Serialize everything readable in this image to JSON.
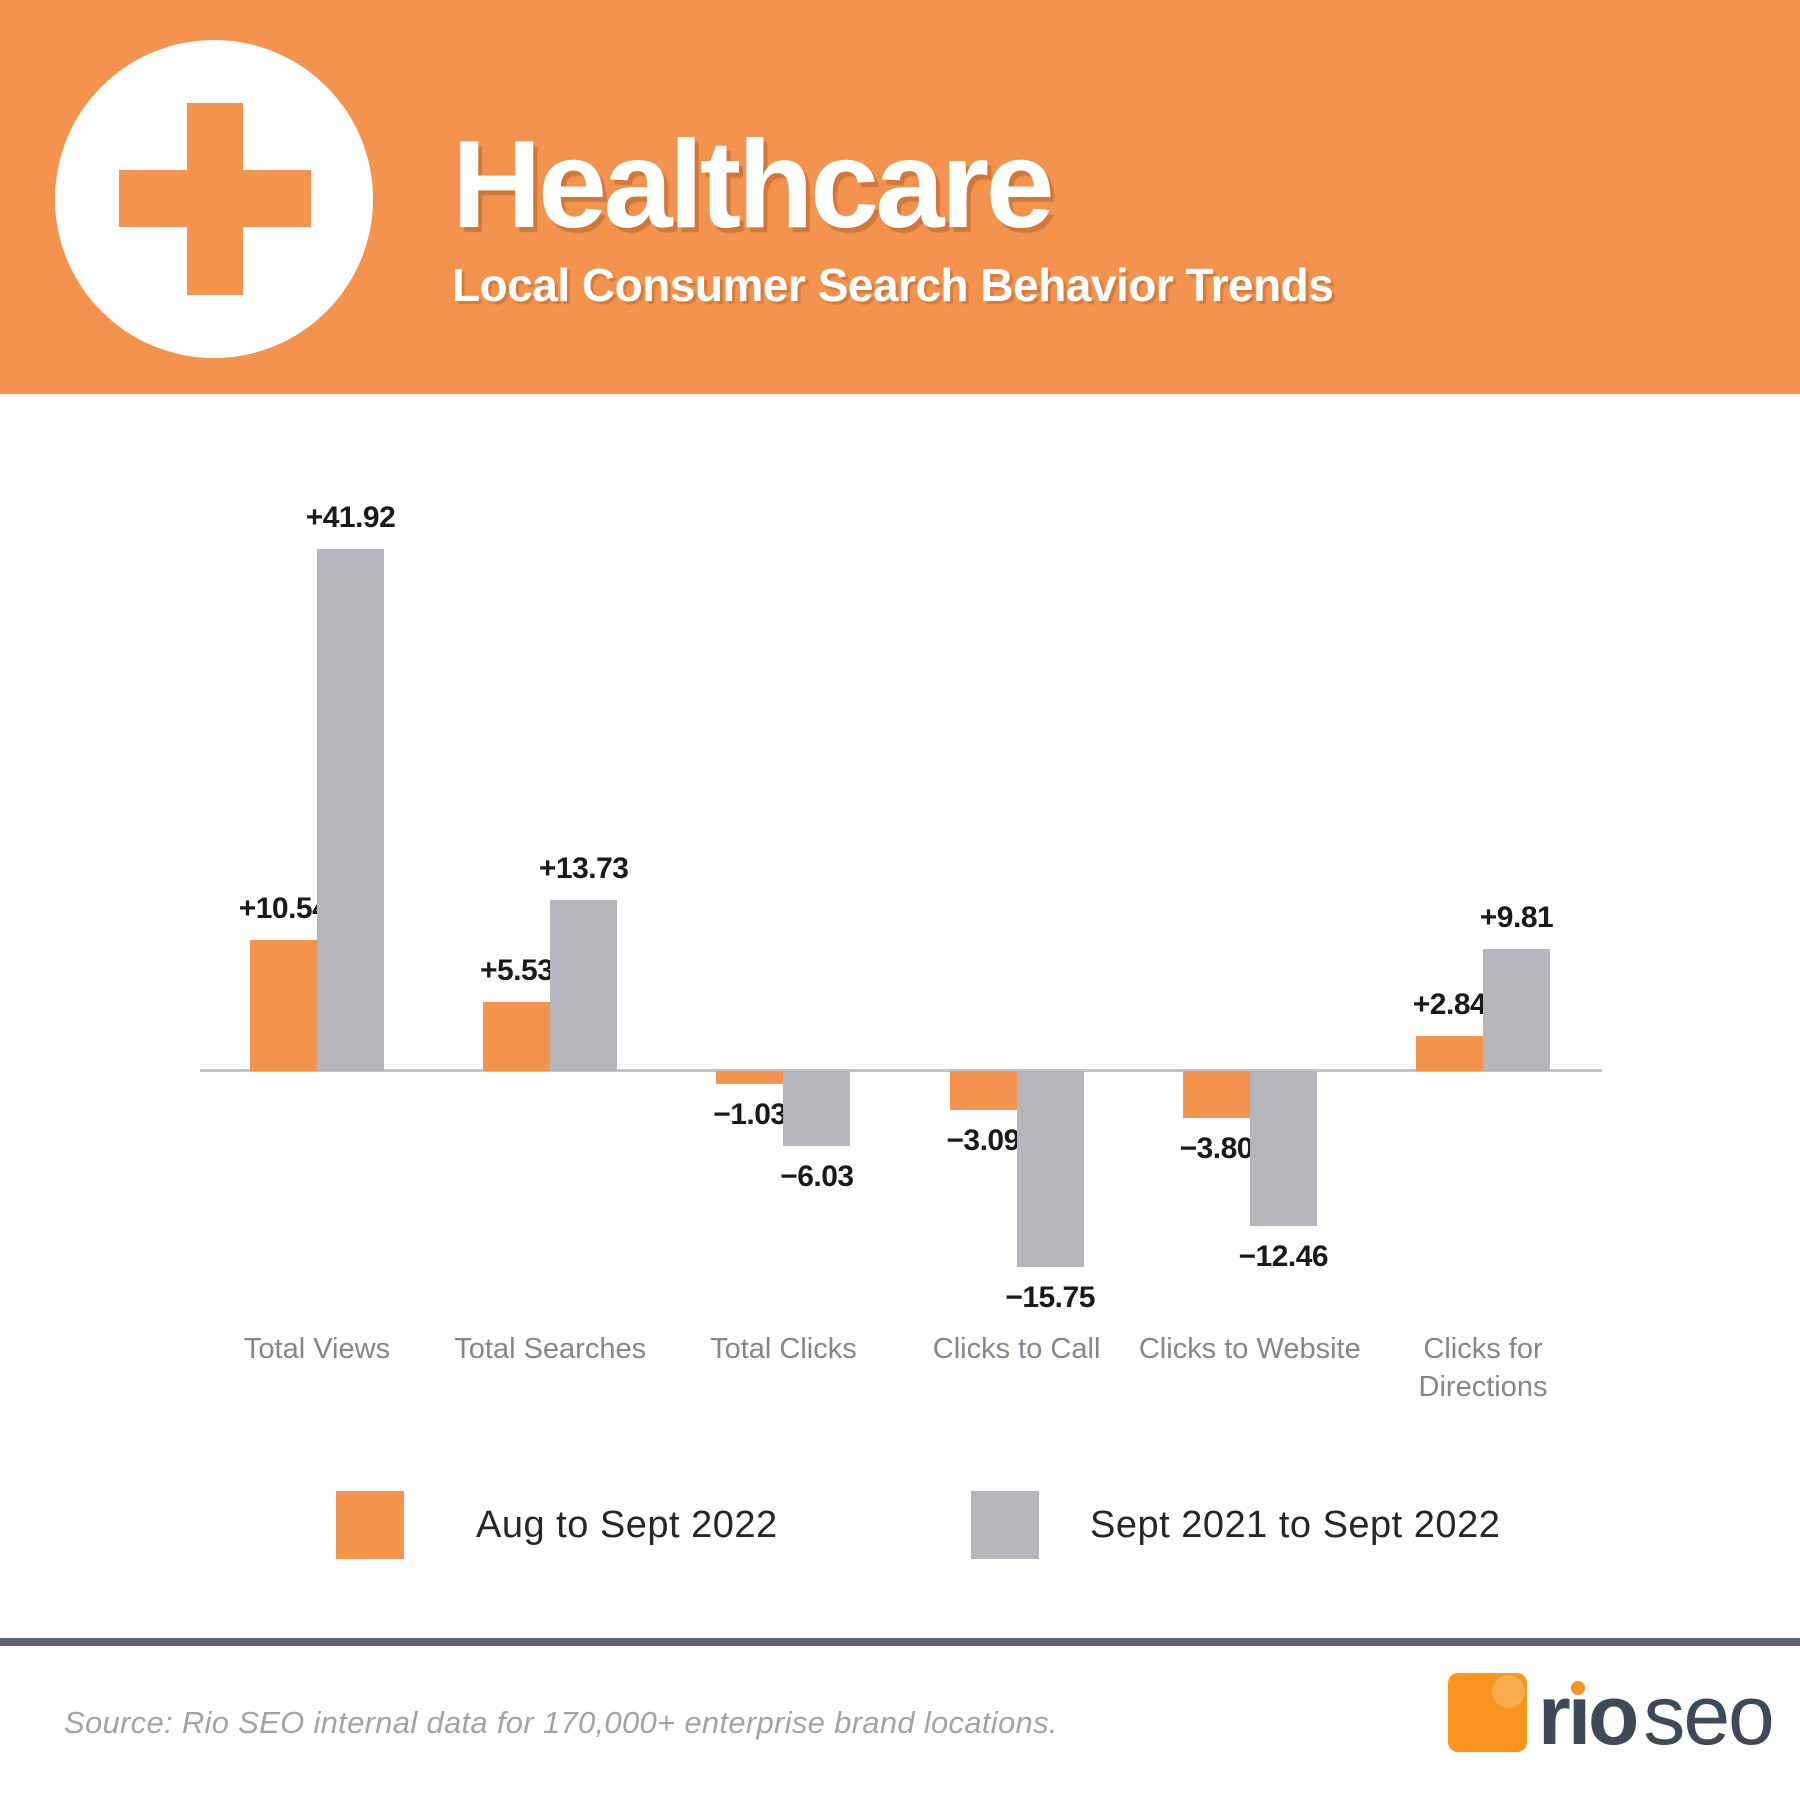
{
  "header": {
    "title": "Healthcare",
    "subtitle": "Local Consumer Search Behavior Trends",
    "icon": "medical-cross-icon",
    "bg_color": "#F3934D"
  },
  "chart_data": {
    "type": "bar",
    "title": "Healthcare Local Consumer Search Behavior Trends",
    "categories": [
      "Total Views",
      "Total Searches",
      "Total Clicks",
      "Clicks to Call",
      "Clicks to Website",
      "Clicks for Directions"
    ],
    "series": [
      {
        "name": "Aug to Sept 2022",
        "color": "#F3934D",
        "values": [
          10.54,
          5.53,
          -1.03,
          -3.09,
          -3.8,
          2.84
        ],
        "labels": [
          "+10.54",
          "+5.53",
          "−1.03",
          "−3.09",
          "−3.80",
          "+2.84"
        ]
      },
      {
        "name": "Sept 2021 to Sept 2022",
        "color": "#B5B6BB",
        "values": [
          41.92,
          13.73,
          -6.03,
          -15.75,
          -12.46,
          9.81
        ],
        "labels": [
          "+41.92",
          "+13.73",
          "−6.03",
          "−15.75",
          "−12.46",
          "+9.81"
        ]
      }
    ],
    "ylim": [
      -16,
      42
    ],
    "xlabel": "",
    "ylabel": "",
    "grid": false,
    "baseline": 0,
    "legend_position": "bottom"
  },
  "footer": {
    "source": "Source: Rio SEO internal data for 170,000+ enterprise brand locations.",
    "logo": {
      "rio": "rio",
      "seo": "seo",
      "mark": "rio-seo-logo-mark"
    }
  }
}
